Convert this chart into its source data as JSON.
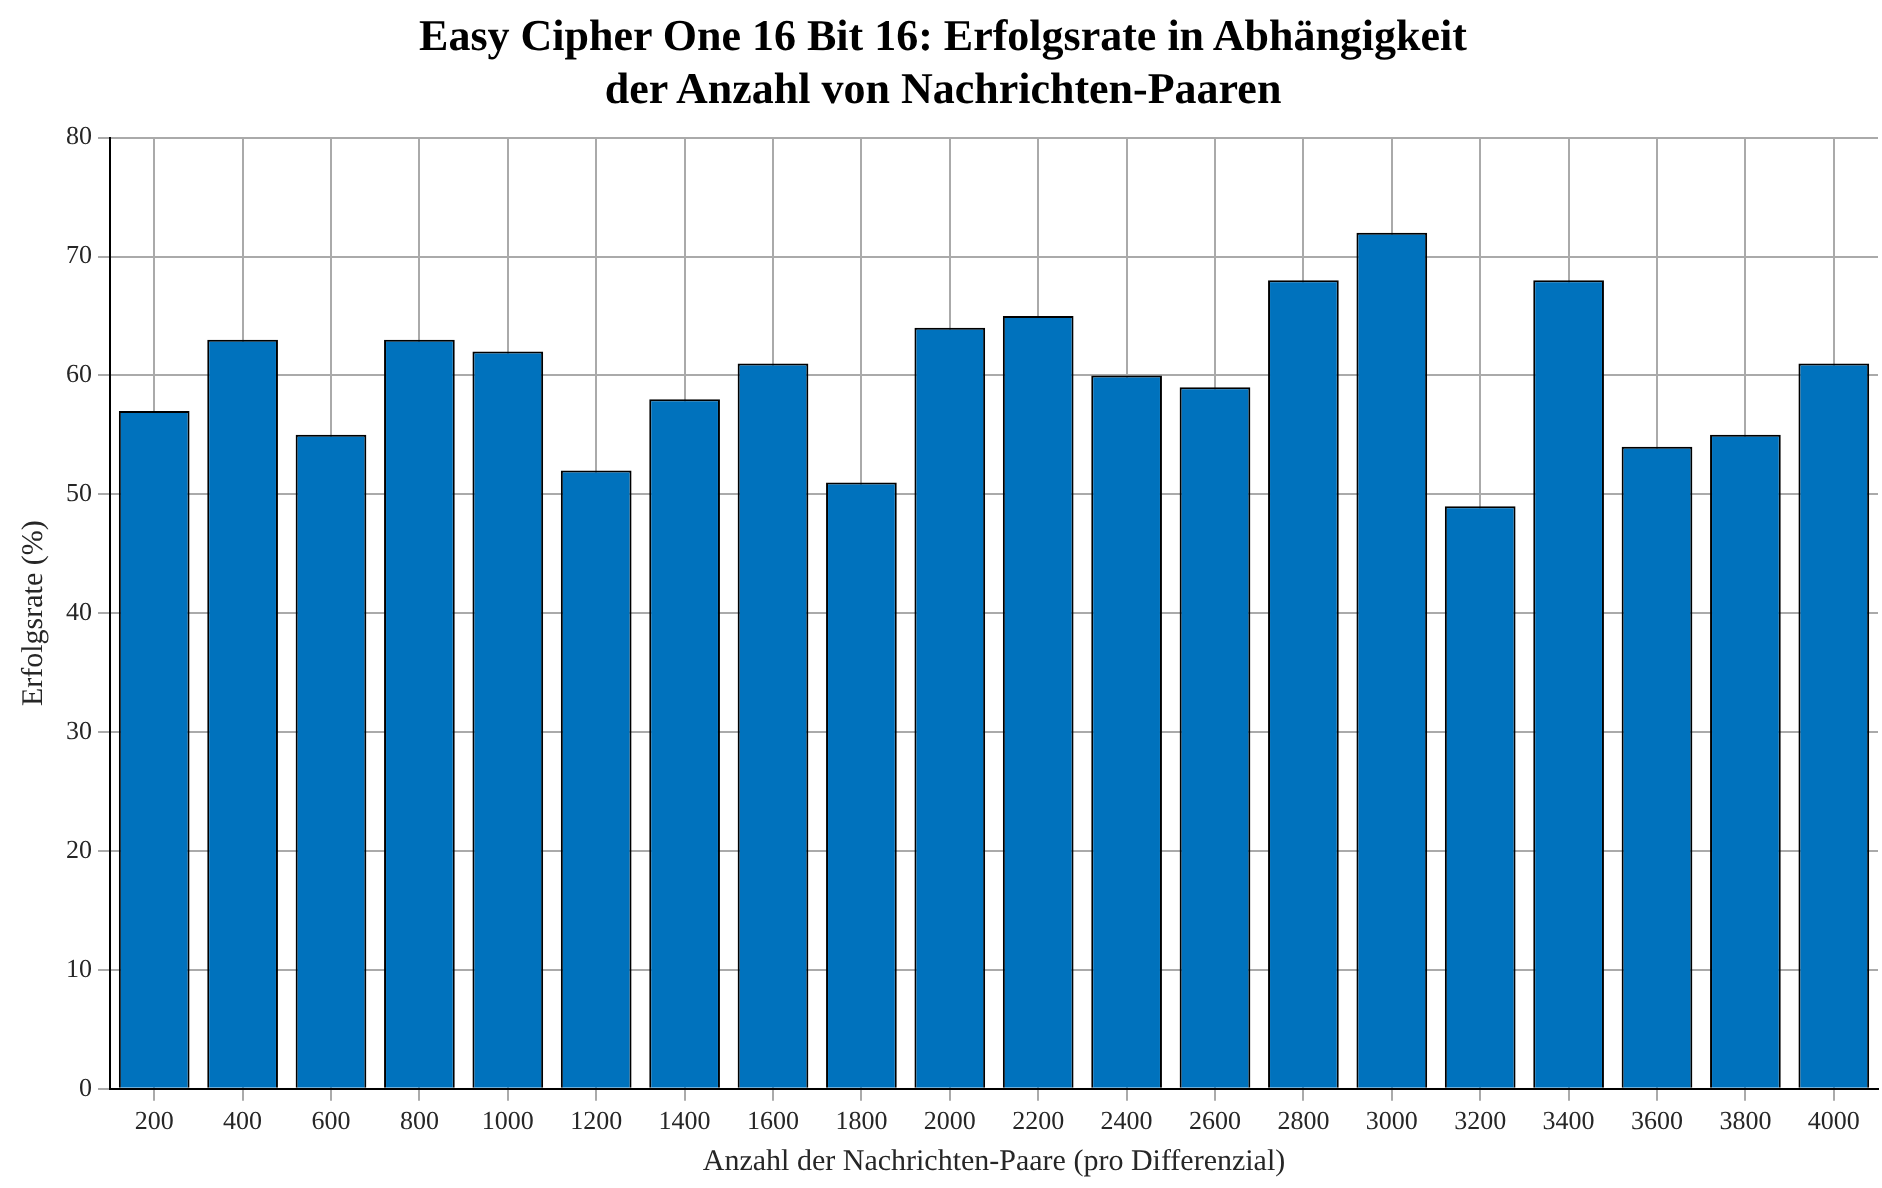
{
  "chart_data": {
    "type": "bar",
    "title": [
      "Easy Cipher One 16 Bit 16: Erfolgsrate in Abhängigkeit",
      "der Anzahl von Nachrichten-Paaren"
    ],
    "xlabel": "Anzahl der Nachrichten-Paare (pro Differenzial)",
    "ylabel": "Erfolgsrate (%)",
    "categories": [
      "200",
      "400",
      "600",
      "800",
      "1000",
      "1200",
      "1400",
      "1600",
      "1800",
      "2000",
      "2200",
      "2400",
      "2600",
      "2800",
      "3000",
      "3200",
      "3400",
      "3600",
      "3800",
      "4000"
    ],
    "values": [
      57,
      63,
      55,
      63,
      62,
      52,
      58,
      61,
      51,
      64,
      65,
      60,
      59,
      68,
      72,
      49,
      68,
      54,
      55,
      61
    ],
    "color": "#0072bd",
    "ylim": [
      0,
      80
    ],
    "yticks": [
      0,
      10,
      20,
      30,
      40,
      50,
      60,
      70,
      80
    ],
    "grid": true,
    "legend": false
  }
}
